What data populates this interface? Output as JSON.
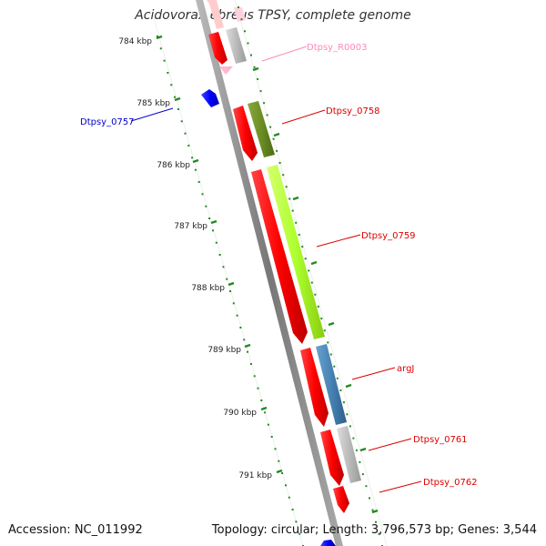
{
  "title": "Acidovorax ebreus TPSY, complete genome",
  "accession": "Accession: NC_011992",
  "summary": "Topology: circular; Length: 3,796,573 bp; Genes: 3,544",
  "ticks": [
    "784 kbp",
    "785 kbp",
    "786 kbp",
    "787 kbp",
    "788 kbp",
    "789 kbp",
    "790 kbp",
    "791 kbp"
  ],
  "genes": [
    {
      "name": "Dtpsy_R0003",
      "color": "#ff88bb"
    },
    {
      "name": "Dtpsy_0757",
      "color": "#0000cc"
    },
    {
      "name": "Dtpsy_0758",
      "color": "#dd0000"
    },
    {
      "name": "Dtpsy_0759",
      "color": "#dd0000"
    },
    {
      "name": "argJ",
      "color": "#dd0000"
    },
    {
      "name": "Dtpsy_0761",
      "color": "#dd0000"
    },
    {
      "name": "Dtpsy_0762",
      "color": "#dd0000"
    }
  ],
  "colors": {
    "cds": "#ff0000",
    "trna": "#ff77aa",
    "minus_gene": "#0000ff",
    "cog_olive": "#6b8e23",
    "cog_lime": "#adff2f",
    "cog_steel": "#4682b4",
    "cog_gray": "#bbbbbb",
    "backbone": "#888888",
    "tick": "#228b22"
  }
}
